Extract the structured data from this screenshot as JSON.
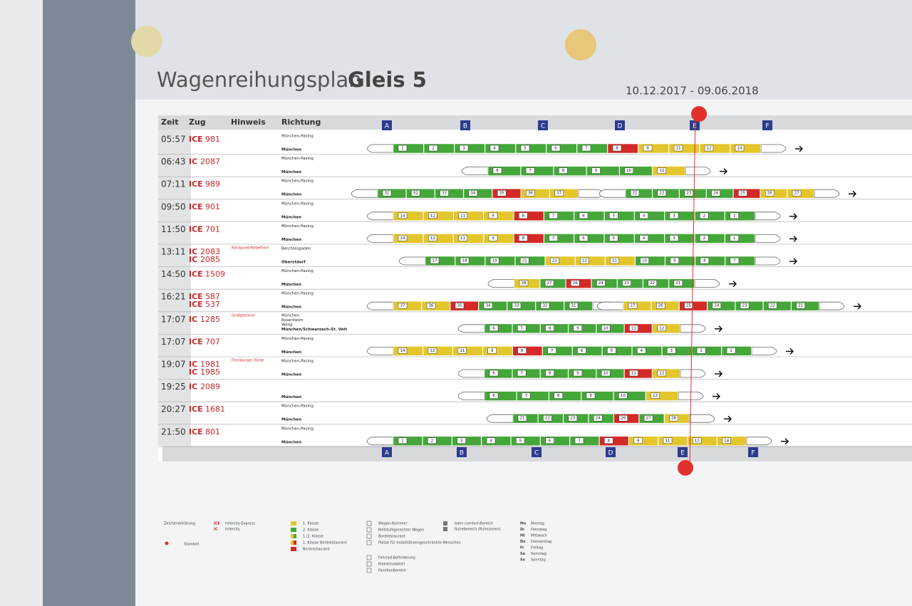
{
  "header": {
    "title": "Wagenreihungsplan",
    "title_bold": "Gleis 5",
    "period": "10.12.2017 - 09.06.2018"
  },
  "columns": [
    "Zeit",
    "Zug",
    "Hinweis",
    "Richtung"
  ],
  "sectors": [
    "A",
    "B",
    "C",
    "D",
    "E",
    "F"
  ],
  "class_colors": {
    "1": "#e3c62c",
    "2": "#45a63a",
    "R": "#d32a27"
  },
  "rows": [
    {
      "time": "05:57",
      "trains": [
        {
          "cat": "ICE",
          "num": "981"
        }
      ],
      "dirs": [
        "München-Pasing",
        "München"
      ],
      "units": [
        [
          {
            "n": "1",
            "cls": "2"
          },
          {
            "n": "2",
            "cls": "2"
          },
          {
            "n": "3",
            "cls": "2"
          },
          {
            "n": "4",
            "cls": "2"
          },
          {
            "n": "5",
            "cls": "2"
          },
          {
            "n": "6",
            "cls": "2"
          },
          {
            "n": "7",
            "cls": "2"
          },
          {
            "n": "8",
            "cls": "R"
          },
          {
            "n": "9",
            "cls": "1"
          },
          {
            "n": "11",
            "cls": "1"
          },
          {
            "n": "12",
            "cls": "1"
          },
          {
            "n": "14",
            "cls": "1"
          }
        ]
      ]
    },
    {
      "time": "06:43",
      "trains": [
        {
          "cat": "IC",
          "num": "2087"
        }
      ],
      "dirs": [
        "München-Pasing",
        "München"
      ],
      "units": [
        [
          {
            "n": "6",
            "cls": "2"
          },
          {
            "n": "7",
            "cls": "2"
          },
          {
            "n": "8",
            "cls": "2"
          },
          {
            "n": "9",
            "cls": "2"
          },
          {
            "n": "10",
            "cls": "2"
          },
          {
            "n": "12",
            "cls": "1"
          }
        ]
      ]
    },
    {
      "time": "07:11",
      "trains": [
        {
          "cat": "ICE",
          "num": "989"
        }
      ],
      "dirs": [
        "München-Pasing",
        "München"
      ],
      "units": [
        [
          {
            "n": "31",
            "cls": "2"
          },
          {
            "n": "32",
            "cls": "2"
          },
          {
            "n": "33",
            "cls": "2"
          },
          {
            "n": "34",
            "cls": "2"
          },
          {
            "n": "35",
            "cls": "R"
          },
          {
            "n": "36",
            "cls": "1"
          },
          {
            "n": "37",
            "cls": "1"
          }
        ],
        [
          {
            "n": "21",
            "cls": "2"
          },
          {
            "n": "22",
            "cls": "2"
          },
          {
            "n": "23",
            "cls": "2"
          },
          {
            "n": "24",
            "cls": "2"
          },
          {
            "n": "25",
            "cls": "R"
          },
          {
            "n": "26",
            "cls": "1"
          },
          {
            "n": "27",
            "cls": "1"
          }
        ]
      ]
    },
    {
      "time": "09:50",
      "trains": [
        {
          "cat": "ICE",
          "num": "901"
        }
      ],
      "dirs": [
        "München-Pasing",
        "München"
      ],
      "units": [
        [
          {
            "n": "14",
            "cls": "1"
          },
          {
            "n": "12",
            "cls": "1"
          },
          {
            "n": "11",
            "cls": "1"
          },
          {
            "n": "9",
            "cls": "1"
          },
          {
            "n": "8",
            "cls": "R"
          },
          {
            "n": "7",
            "cls": "2"
          },
          {
            "n": "6",
            "cls": "2"
          },
          {
            "n": "5",
            "cls": "2"
          },
          {
            "n": "4",
            "cls": "2"
          },
          {
            "n": "3",
            "cls": "2"
          },
          {
            "n": "2",
            "cls": "2"
          },
          {
            "n": "1",
            "cls": "2"
          }
        ]
      ]
    },
    {
      "time": "11:50",
      "trains": [
        {
          "cat": "ICE",
          "num": "701"
        }
      ],
      "dirs": [
        "München-Pasing",
        "München"
      ],
      "units": [
        [
          {
            "n": "14",
            "cls": "1"
          },
          {
            "n": "12",
            "cls": "1"
          },
          {
            "n": "11",
            "cls": "1"
          },
          {
            "n": "9",
            "cls": "1"
          },
          {
            "n": "8",
            "cls": "R"
          },
          {
            "n": "7",
            "cls": "2"
          },
          {
            "n": "6",
            "cls": "2"
          },
          {
            "n": "5",
            "cls": "2"
          },
          {
            "n": "4",
            "cls": "2"
          },
          {
            "n": "3",
            "cls": "2"
          },
          {
            "n": "2",
            "cls": "2"
          },
          {
            "n": "1",
            "cls": "2"
          }
        ]
      ]
    },
    {
      "time": "13:11",
      "trains": [
        {
          "cat": "IC",
          "num": "2083"
        },
        {
          "cat": "IC",
          "num": "2085"
        }
      ],
      "hint": "Königssee/Nebelhorn",
      "dirs": [
        "Berchtesgaden",
        "Oberstdorf"
      ],
      "units": [
        [
          {
            "n": "17",
            "cls": "2"
          },
          {
            "n": "18",
            "cls": "2"
          },
          {
            "n": "19",
            "cls": "2"
          },
          {
            "n": "21",
            "cls": "2"
          },
          {
            "n": "22",
            "cls": "1"
          },
          {
            "n": "12",
            "cls": "1"
          },
          {
            "n": "11",
            "cls": "1"
          },
          {
            "n": "10",
            "cls": "2"
          },
          {
            "n": "9",
            "cls": "2"
          },
          {
            "n": "8",
            "cls": "2"
          },
          {
            "n": "7",
            "cls": "2"
          }
        ]
      ]
    },
    {
      "time": "14:50",
      "trains": [
        {
          "cat": "ICE",
          "num": "1509"
        }
      ],
      "dirs": [
        "München-Pasing",
        "München"
      ],
      "units": [
        [
          {
            "n": "28",
            "cls": "1"
          },
          {
            "n": "27",
            "cls": "2"
          },
          {
            "n": "26",
            "cls": "R"
          },
          {
            "n": "24",
            "cls": "2"
          },
          {
            "n": "23",
            "cls": "2"
          },
          {
            "n": "22",
            "cls": "2"
          },
          {
            "n": "21",
            "cls": "2"
          }
        ]
      ]
    },
    {
      "time": "16:21",
      "trains": [
        {
          "cat": "ICE",
          "num": "587"
        },
        {
          "cat": "ICE",
          "num": "537"
        }
      ],
      "dirs": [
        "München-Pasing",
        "München"
      ],
      "units": [
        [
          {
            "n": "37",
            "cls": "1"
          },
          {
            "n": "36",
            "cls": "1"
          },
          {
            "n": "35",
            "cls": "R"
          },
          {
            "n": "34",
            "cls": "2"
          },
          {
            "n": "33",
            "cls": "2"
          },
          {
            "n": "32",
            "cls": "2"
          },
          {
            "n": "31",
            "cls": "2"
          }
        ],
        [
          {
            "n": "27",
            "cls": "1"
          },
          {
            "n": "26",
            "cls": "1"
          },
          {
            "n": "25",
            "cls": "R"
          },
          {
            "n": "24",
            "cls": "2"
          },
          {
            "n": "23",
            "cls": "2"
          },
          {
            "n": "22",
            "cls": "2"
          },
          {
            "n": "21",
            "cls": "2"
          }
        ]
      ]
    },
    {
      "time": "17:07",
      "trains": [
        {
          "cat": "IC",
          "num": "1285"
        }
      ],
      "hint": "Großglockner",
      "dirs": [
        "München",
        "Rosenheim",
        "Wörgl",
        "München/Schwarzach-St. Veit"
      ],
      "units": [
        [
          {
            "n": "6",
            "cls": "2"
          },
          {
            "n": "7",
            "cls": "2"
          },
          {
            "n": "8",
            "cls": "2"
          },
          {
            "n": "9",
            "cls": "2"
          },
          {
            "n": "10",
            "cls": "2"
          },
          {
            "n": "11",
            "cls": "R"
          },
          {
            "n": "12",
            "cls": "1"
          }
        ]
      ]
    },
    {
      "time": "17:07",
      "trains": [
        {
          "cat": "ICE",
          "num": "707"
        }
      ],
      "dirs": [
        "München-Pasing",
        "München"
      ],
      "units": [
        [
          {
            "n": "14",
            "cls": "1"
          },
          {
            "n": "12",
            "cls": "1"
          },
          {
            "n": "11",
            "cls": "1"
          },
          {
            "n": "9",
            "cls": "1"
          },
          {
            "n": "8",
            "cls": "R"
          },
          {
            "n": "7",
            "cls": "2"
          },
          {
            "n": "6",
            "cls": "2"
          },
          {
            "n": "5",
            "cls": "2"
          },
          {
            "n": "4",
            "cls": "2"
          },
          {
            "n": "3",
            "cls": "2"
          },
          {
            "n": "2",
            "cls": "2"
          },
          {
            "n": "1",
            "cls": "2"
          }
        ]
      ]
    },
    {
      "time": "19:07",
      "trains": [
        {
          "cat": "IC",
          "num": "1981"
        },
        {
          "cat": "IC",
          "num": "1985"
        }
      ],
      "hint": "Flensburger Förde",
      "dirs": [
        "München-Pasing",
        "München"
      ],
      "units": [
        [
          {
            "n": "6",
            "cls": "2"
          },
          {
            "n": "7",
            "cls": "2"
          },
          {
            "n": "8",
            "cls": "2"
          },
          {
            "n": "9",
            "cls": "2"
          },
          {
            "n": "10",
            "cls": "2"
          },
          {
            "n": "11",
            "cls": "R"
          },
          {
            "n": "12",
            "cls": "1"
          }
        ]
      ]
    },
    {
      "time": "19:25",
      "trains": [
        {
          "cat": "IC",
          "num": "2089"
        }
      ],
      "dirs": [
        "München"
      ],
      "units": [
        [
          {
            "n": "6",
            "cls": "2"
          },
          {
            "n": "7",
            "cls": "2"
          },
          {
            "n": "8",
            "cls": "2"
          },
          {
            "n": "9",
            "cls": "2"
          },
          {
            "n": "10",
            "cls": "2"
          },
          {
            "n": "12",
            "cls": "1"
          }
        ]
      ]
    },
    {
      "time": "20:27",
      "trains": [
        {
          "cat": "ICE",
          "num": "1681"
        }
      ],
      "dirs": [
        "München-Pasing",
        "München"
      ],
      "units": [
        [
          {
            "n": "21",
            "cls": "2"
          },
          {
            "n": "22",
            "cls": "2"
          },
          {
            "n": "23",
            "cls": "2"
          },
          {
            "n": "24",
            "cls": "2"
          },
          {
            "n": "26",
            "cls": "R"
          },
          {
            "n": "27",
            "cls": "2"
          },
          {
            "n": "28",
            "cls": "1"
          }
        ]
      ]
    },
    {
      "time": "21:50",
      "trains": [
        {
          "cat": "ICE",
          "num": "801"
        }
      ],
      "dirs": [
        "München-Pasing",
        "München"
      ],
      "units": [
        [
          {
            "n": "1",
            "cls": "2"
          },
          {
            "n": "2",
            "cls": "2"
          },
          {
            "n": "3",
            "cls": "2"
          },
          {
            "n": "4",
            "cls": "2"
          },
          {
            "n": "5",
            "cls": "2"
          },
          {
            "n": "6",
            "cls": "2"
          },
          {
            "n": "7",
            "cls": "2"
          },
          {
            "n": "8",
            "cls": "R"
          },
          {
            "n": "9",
            "cls": "1"
          },
          {
            "n": "11",
            "cls": "1"
          },
          {
            "n": "12",
            "cls": "1"
          },
          {
            "n": "14",
            "cls": "1"
          }
        ]
      ]
    }
  ],
  "legend": {
    "title": "Zeichenerklärung",
    "location": "Standort",
    "categories": [
      {
        "code": "ICE",
        "label": "Intercity-Express"
      },
      {
        "code": "IC",
        "label": "Intercity"
      }
    ],
    "classes": [
      {
        "cls": "1",
        "label": "1. Klasse"
      },
      {
        "cls": "2",
        "label": "2. Klasse"
      },
      {
        "cls": "12",
        "label": "1./2. Klasse"
      },
      {
        "cls": "1R",
        "label": "1. Klasse Bordrestaurant"
      },
      {
        "cls": "R",
        "label": "Bordrestaurant"
      }
    ],
    "symbols": [
      "Wagen-Nummer",
      "Rollstuhlgerechter Wagen",
      "Bordrestaurant",
      "Plätze für mobilitätseingeschränkte Menschen",
      "Fahrrad-Beförderung",
      "Kleinkindabteil",
      "Familienbereich"
    ],
    "symbols2": [
      "bahn.comfort-Bereich",
      "Ruhebereich (Ruhezonen)"
    ],
    "days": [
      {
        "abbr": "Mo",
        "name": "Montag"
      },
      {
        "abbr": "Di",
        "name": "Dienstag"
      },
      {
        "abbr": "Mi",
        "name": "Mittwoch"
      },
      {
        "abbr": "Do",
        "name": "Donnerstag"
      },
      {
        "abbr": "Fr",
        "name": "Freitag"
      },
      {
        "abbr": "Sa",
        "name": "Samstag"
      },
      {
        "abbr": "So",
        "name": "Sonntag"
      }
    ]
  }
}
